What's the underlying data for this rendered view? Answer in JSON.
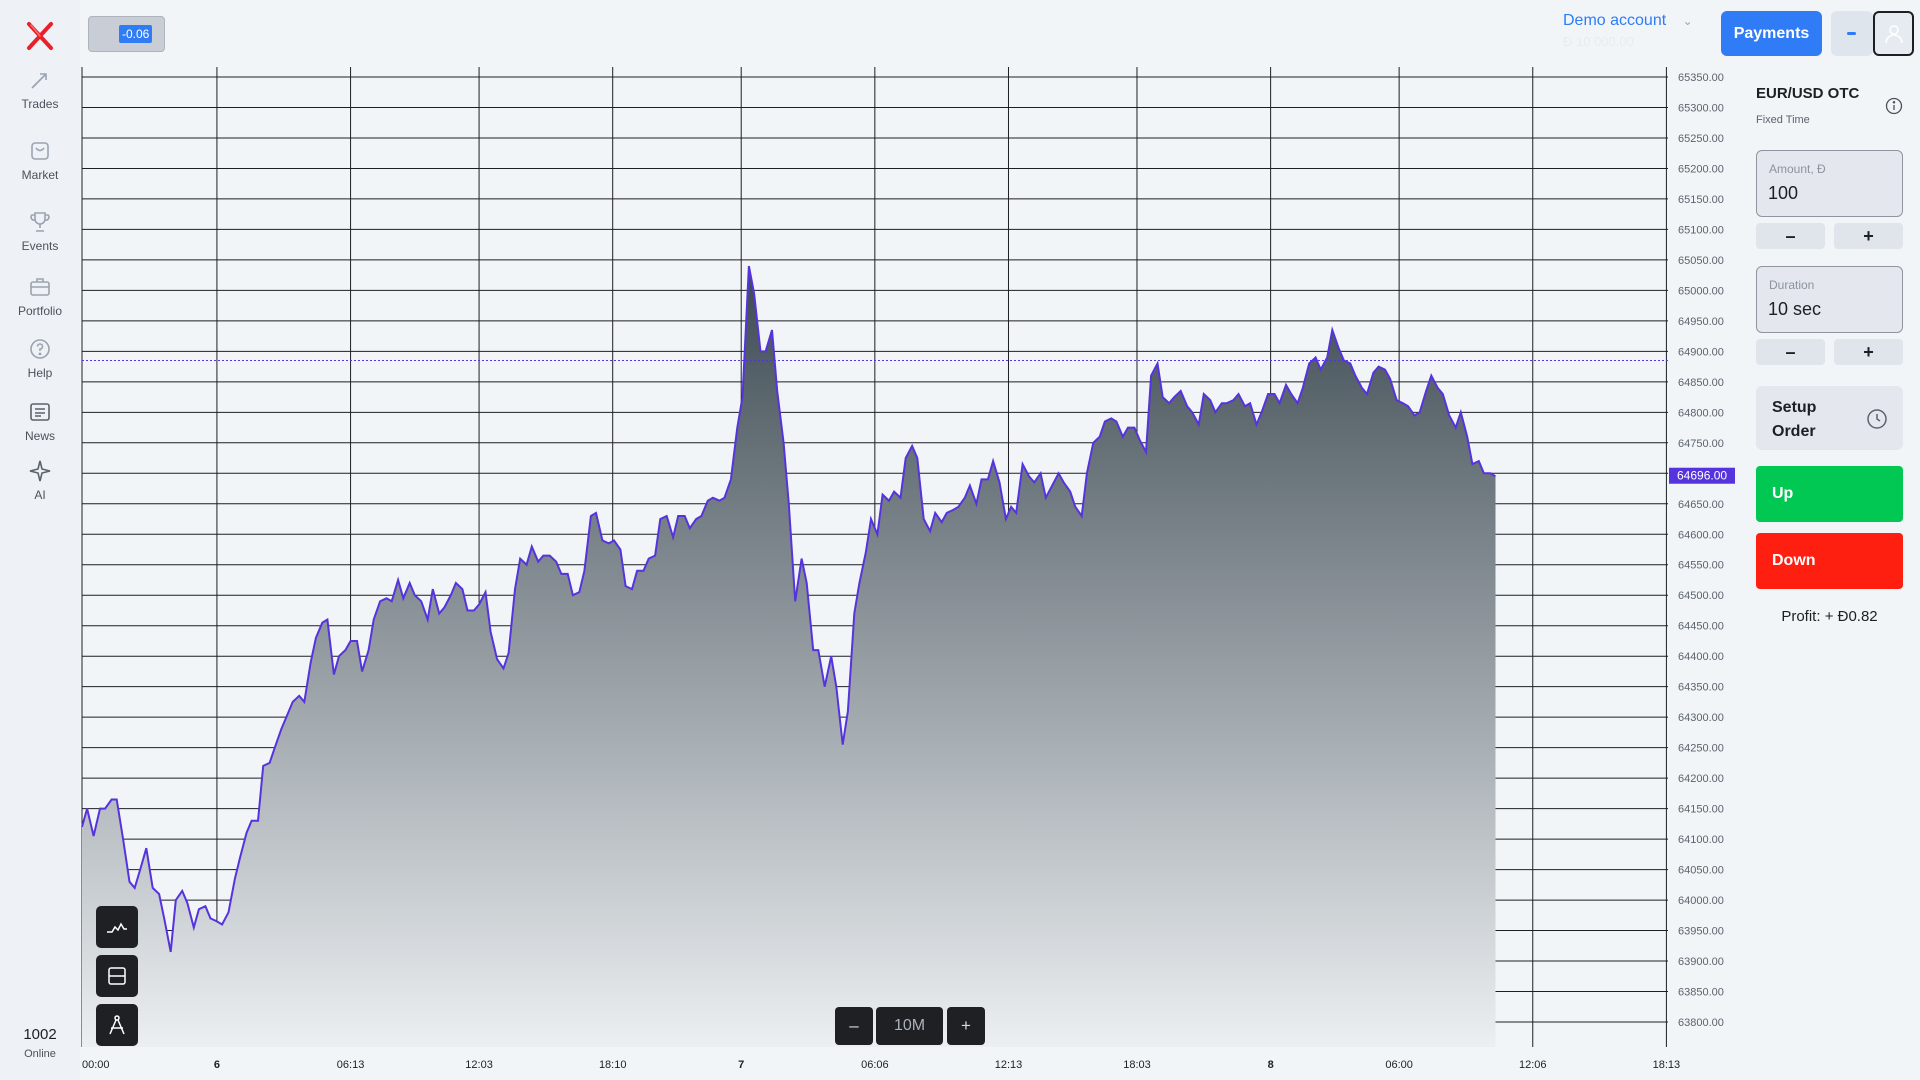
{
  "sidebar": {
    "logo_icon": "x-logo-icon",
    "items": [
      {
        "label": "Trades",
        "icon": "arrows-icon"
      },
      {
        "label": "Market",
        "icon": "bag-icon"
      },
      {
        "label": "Events",
        "icon": "trophy-icon"
      },
      {
        "label": "Portfolio",
        "icon": "briefcase-icon"
      },
      {
        "label": "Help",
        "icon": "question-icon"
      },
      {
        "label": "News",
        "icon": "newspaper-icon"
      },
      {
        "label": "AI",
        "icon": "sparkle-icon"
      }
    ],
    "online_count": "1002",
    "online_label": "Online"
  },
  "header": {
    "change_badge": "-0.06",
    "account_name": "Demo account",
    "account_balance": "Đ 10 000.00",
    "payments_label": "Payments"
  },
  "chart_data": {
    "type": "area",
    "title": "",
    "xlabel": "",
    "ylabel": "",
    "ylim": [
      63780,
      65370
    ],
    "y_ticks": [
      "65350.00",
      "65300.00",
      "65250.00",
      "65200.00",
      "65150.00",
      "65100.00",
      "65050.00",
      "65000.00",
      "64950.00",
      "64900.00",
      "64850.00",
      "64800.00",
      "64750.00",
      "64700.00",
      "64650.00",
      "64600.00",
      "64550.00",
      "64500.00",
      "64450.00",
      "64400.00",
      "64350.00",
      "64300.00",
      "64250.00",
      "64200.00",
      "64150.00",
      "64100.00",
      "64050.00",
      "64000.00",
      "63950.00",
      "63900.00",
      "63850.00",
      "63800.00"
    ],
    "x_ticks": [
      {
        "label": "00:00",
        "t": 0
      },
      {
        "label": "6",
        "t": 1.05,
        "bold": true
      },
      {
        "label": "06:13",
        "t": 2.09
      },
      {
        "label": "12:03",
        "t": 3.09
      },
      {
        "label": "18:10",
        "t": 4.13
      },
      {
        "label": "7",
        "t": 5.13,
        "bold": true
      },
      {
        "label": "06:06",
        "t": 6.17
      },
      {
        "label": "12:13",
        "t": 7.21
      },
      {
        "label": "18:03",
        "t": 8.21
      },
      {
        "label": "8",
        "t": 9.25,
        "bold": true
      },
      {
        "label": "06:00",
        "t": 10.25
      },
      {
        "label": "12:06",
        "t": 11.29
      },
      {
        "label": "18:13",
        "t": 12.33
      }
    ],
    "current_price": "64696.00",
    "reference_level": 64885,
    "grid": true,
    "series": [
      {
        "color": "#5533dd",
        "points": [
          [
            0,
            64120
          ],
          [
            0.04,
            64150
          ],
          [
            0.09,
            64105
          ],
          [
            0.14,
            64150
          ],
          [
            0.18,
            64150
          ],
          [
            0.23,
            64165
          ],
          [
            0.27,
            64165
          ],
          [
            0.32,
            64100
          ],
          [
            0.37,
            64030
          ],
          [
            0.41,
            64020
          ],
          [
            0.46,
            64055
          ],
          [
            0.5,
            64085
          ],
          [
            0.55,
            64020
          ],
          [
            0.6,
            64010
          ],
          [
            0.64,
            63970
          ],
          [
            0.69,
            63915
          ],
          [
            0.73,
            64000
          ],
          [
            0.78,
            64015
          ],
          [
            0.82,
            63995
          ],
          [
            0.87,
            63955
          ],
          [
            0.91,
            63985
          ],
          [
            0.96,
            63990
          ],
          [
            1.0,
            63970
          ],
          [
            1.05,
            63965
          ],
          [
            1.09,
            63960
          ],
          [
            1.14,
            63980
          ],
          [
            1.19,
            64035
          ],
          [
            1.23,
            64070
          ],
          [
            1.28,
            64110
          ],
          [
            1.32,
            64130
          ],
          [
            1.37,
            64130
          ],
          [
            1.41,
            64220
          ],
          [
            1.46,
            64225
          ],
          [
            1.5,
            64250
          ],
          [
            1.55,
            64280
          ],
          [
            1.6,
            64305
          ],
          [
            1.64,
            64325
          ],
          [
            1.69,
            64335
          ],
          [
            1.73,
            64325
          ],
          [
            1.78,
            64390
          ],
          [
            1.82,
            64430
          ],
          [
            1.87,
            64455
          ],
          [
            1.91,
            64460
          ],
          [
            1.96,
            64370
          ],
          [
            2.0,
            64400
          ],
          [
            2.05,
            64410
          ],
          [
            2.09,
            64425
          ],
          [
            2.14,
            64425
          ],
          [
            2.18,
            64375
          ],
          [
            2.23,
            64410
          ],
          [
            2.27,
            64460
          ],
          [
            2.32,
            64490
          ],
          [
            2.37,
            64495
          ],
          [
            2.41,
            64490
          ],
          [
            2.46,
            64525
          ],
          [
            2.5,
            64495
          ],
          [
            2.55,
            64520
          ],
          [
            2.59,
            64500
          ],
          [
            2.64,
            64490
          ],
          [
            2.69,
            64460
          ],
          [
            2.73,
            64510
          ],
          [
            2.78,
            64470
          ],
          [
            2.82,
            64480
          ],
          [
            2.87,
            64500
          ],
          [
            2.91,
            64520
          ],
          [
            2.96,
            64510
          ],
          [
            3.0,
            64475
          ],
          [
            3.05,
            64475
          ],
          [
            3.09,
            64485
          ],
          [
            3.14,
            64505
          ],
          [
            3.18,
            64440
          ],
          [
            3.23,
            64395
          ],
          [
            3.28,
            64380
          ],
          [
            3.32,
            64405
          ],
          [
            3.37,
            64510
          ],
          [
            3.41,
            64560
          ],
          [
            3.46,
            64550
          ],
          [
            3.5,
            64580
          ],
          [
            3.55,
            64555
          ],
          [
            3.59,
            64565
          ],
          [
            3.64,
            64565
          ],
          [
            3.69,
            64555
          ],
          [
            3.73,
            64535
          ],
          [
            3.78,
            64535
          ],
          [
            3.82,
            64500
          ],
          [
            3.87,
            64505
          ],
          [
            3.91,
            64540
          ],
          [
            3.96,
            64630
          ],
          [
            4.0,
            64635
          ],
          [
            4.05,
            64590
          ],
          [
            4.1,
            64585
          ],
          [
            4.14,
            64590
          ],
          [
            4.19,
            64575
          ],
          [
            4.23,
            64515
          ],
          [
            4.28,
            64510
          ],
          [
            4.32,
            64540
          ],
          [
            4.37,
            64540
          ],
          [
            4.41,
            64560
          ],
          [
            4.46,
            64565
          ],
          [
            4.5,
            64625
          ],
          [
            4.55,
            64630
          ],
          [
            4.6,
            64595
          ],
          [
            4.64,
            64630
          ],
          [
            4.69,
            64630
          ],
          [
            4.73,
            64610
          ],
          [
            4.78,
            64625
          ],
          [
            4.82,
            64630
          ],
          [
            4.87,
            64655
          ],
          [
            4.91,
            64660
          ],
          [
            4.96,
            64655
          ],
          [
            5.0,
            64660
          ],
          [
            5.05,
            64690
          ],
          [
            5.1,
            64775
          ],
          [
            5.14,
            64825
          ],
          [
            5.19,
            65040
          ],
          [
            5.23,
            64995
          ],
          [
            5.28,
            64900
          ],
          [
            5.32,
            64900
          ],
          [
            5.37,
            64935
          ],
          [
            5.41,
            64835
          ],
          [
            5.46,
            64750
          ],
          [
            5.5,
            64650
          ],
          [
            5.55,
            64490
          ],
          [
            5.6,
            64560
          ],
          [
            5.64,
            64520
          ],
          [
            5.69,
            64410
          ],
          [
            5.73,
            64410
          ],
          [
            5.78,
            64350
          ],
          [
            5.83,
            64400
          ],
          [
            5.87,
            64350
          ],
          [
            5.92,
            64255
          ],
          [
            5.96,
            64310
          ],
          [
            6.01,
            64470
          ],
          [
            6.05,
            64520
          ],
          [
            6.1,
            64570
          ],
          [
            6.14,
            64625
          ],
          [
            6.19,
            64600
          ],
          [
            6.23,
            64665
          ],
          [
            6.28,
            64655
          ],
          [
            6.32,
            64670
          ],
          [
            6.37,
            64660
          ],
          [
            6.41,
            64725
          ],
          [
            6.46,
            64745
          ],
          [
            6.5,
            64725
          ],
          [
            6.55,
            64625
          ],
          [
            6.6,
            64605
          ],
          [
            6.64,
            64635
          ],
          [
            6.69,
            64620
          ],
          [
            6.73,
            64635
          ],
          [
            6.78,
            64640
          ],
          [
            6.82,
            64645
          ],
          [
            6.87,
            64660
          ],
          [
            6.91,
            64680
          ],
          [
            6.96,
            64650
          ],
          [
            7.0,
            64690
          ],
          [
            7.05,
            64690
          ],
          [
            7.09,
            64720
          ],
          [
            7.14,
            64685
          ],
          [
            7.19,
            64625
          ],
          [
            7.23,
            64645
          ],
          [
            7.27,
            64635
          ],
          [
            7.32,
            64715
          ],
          [
            7.37,
            64695
          ],
          [
            7.41,
            64685
          ],
          [
            7.46,
            64700
          ],
          [
            7.5,
            64660
          ],
          [
            7.55,
            64680
          ],
          [
            7.6,
            64700
          ],
          [
            7.64,
            64685
          ],
          [
            7.69,
            64670
          ],
          [
            7.73,
            64645
          ],
          [
            7.78,
            64630
          ],
          [
            7.82,
            64700
          ],
          [
            7.87,
            64750
          ],
          [
            7.92,
            64760
          ],
          [
            7.96,
            64785
          ],
          [
            8.01,
            64790
          ],
          [
            8.05,
            64785
          ],
          [
            8.1,
            64760
          ],
          [
            8.14,
            64775
          ],
          [
            8.19,
            64775
          ],
          [
            8.23,
            64755
          ],
          [
            8.28,
            64735
          ],
          [
            8.32,
            64860
          ],
          [
            8.37,
            64880
          ],
          [
            8.41,
            64825
          ],
          [
            8.46,
            64815
          ],
          [
            8.5,
            64825
          ],
          [
            8.55,
            64835
          ],
          [
            8.6,
            64810
          ],
          [
            8.64,
            64800
          ],
          [
            8.69,
            64780
          ],
          [
            8.73,
            64830
          ],
          [
            8.78,
            64820
          ],
          [
            8.82,
            64800
          ],
          [
            8.87,
            64815
          ],
          [
            8.91,
            64815
          ],
          [
            8.96,
            64820
          ],
          [
            9.0,
            64830
          ],
          [
            9.05,
            64810
          ],
          [
            9.09,
            64815
          ],
          [
            9.14,
            64780
          ],
          [
            9.18,
            64800
          ],
          [
            9.23,
            64830
          ],
          [
            9.28,
            64830
          ],
          [
            9.32,
            64815
          ],
          [
            9.37,
            64845
          ],
          [
            9.41,
            64830
          ],
          [
            9.46,
            64815
          ],
          [
            9.5,
            64840
          ],
          [
            9.55,
            64880
          ],
          [
            9.6,
            64890
          ],
          [
            9.64,
            64870
          ],
          [
            9.69,
            64890
          ],
          [
            9.73,
            64935
          ],
          [
            9.78,
            64905
          ],
          [
            9.82,
            64885
          ],
          [
            9.87,
            64880
          ],
          [
            9.91,
            64860
          ],
          [
            9.96,
            64840
          ],
          [
            10.0,
            64830
          ],
          [
            10.05,
            64865
          ],
          [
            10.09,
            64875
          ],
          [
            10.14,
            64870
          ],
          [
            10.18,
            64855
          ],
          [
            10.23,
            64820
          ],
          [
            10.28,
            64815
          ],
          [
            10.32,
            64810
          ],
          [
            10.37,
            64795
          ],
          [
            10.41,
            64800
          ],
          [
            10.46,
            64835
          ],
          [
            10.5,
            64860
          ],
          [
            10.55,
            64840
          ],
          [
            10.59,
            64830
          ],
          [
            10.64,
            64795
          ],
          [
            10.69,
            64775
          ],
          [
            10.73,
            64800
          ],
          [
            10.78,
            64760
          ],
          [
            10.82,
            64715
          ],
          [
            10.87,
            64720
          ],
          [
            10.91,
            64700
          ],
          [
            10.96,
            64700
          ],
          [
            11.0,
            64695
          ]
        ]
      }
    ]
  },
  "chart_tools": [
    {
      "name": "chart-type",
      "icon": "line-chart-icon"
    },
    {
      "name": "indicators",
      "icon": "panel-icon"
    },
    {
      "name": "drawing",
      "icon": "compass-icon"
    }
  ],
  "zoom": {
    "minus": "–",
    "label": "10M",
    "plus": "+"
  },
  "panel": {
    "pair": "EUR/USD OTC",
    "mode": "Fixed Time",
    "amount_label": "Amount, Đ",
    "amount_value": "100",
    "duration_label": "Duration",
    "duration_value": "10 sec",
    "minus": "–",
    "plus": "+",
    "setup_order": "Setup Order",
    "up_label": "Up",
    "down_label": "Down",
    "profit": "Profit: + Đ0.82"
  },
  "colors": {
    "accent": "#2f7cf6",
    "up": "#00c853",
    "down": "#ff1f10",
    "price_line": "#5533dd"
  }
}
